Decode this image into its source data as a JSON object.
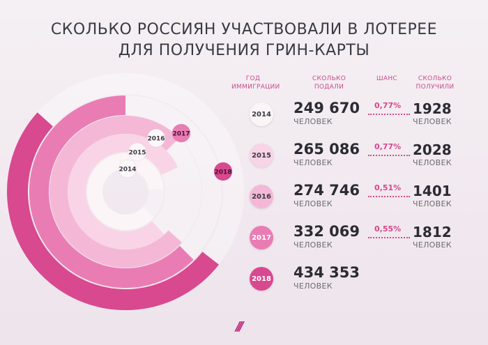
{
  "title_lines": [
    "СКОЛЬКО РОССИЯН УЧАСТВОВАЛИ В ЛОТЕРЕЕ",
    "ДЛЯ ПОЛУЧЕНИЯ ГРИН-КАРТЫ"
  ],
  "headers": {
    "year": [
      "ГОД",
      "ИММИГРАЦИИ"
    ],
    "applied": [
      "СКОЛЬКО",
      "ПОДАЛИ"
    ],
    "chance": [
      "ШАНС"
    ],
    "received": [
      "СКОЛЬКО",
      "ПОЛУЧИЛИ"
    ]
  },
  "colors": {
    "2014": "#fcf5f8",
    "2015": "#f8d4e6",
    "2016": "#f4b8d6",
    "2017": "#ea7cb4",
    "2018": "#d8498f",
    "accent": "#d6478e"
  },
  "logo_text": "///",
  "chart_data": {
    "type": "table",
    "title": "СКОЛЬКО РОССИЯН УЧАСТВОВАЛИ В ЛОТЕРЕЕ ДЛЯ ПОЛУЧЕНИЯ ГРИН-КАРТЫ",
    "rows": [
      {
        "year": "2014",
        "applied": "249 670",
        "applied_value": 249670,
        "unit": "ЧЕЛОВЕК",
        "chance": "0,77%",
        "received": "1928",
        "received_unit": "ЧЕЛОВЕК"
      },
      {
        "year": "2015",
        "applied": "265 086",
        "applied_value": 265086,
        "unit": "ЧЕЛОВЕК",
        "chance": "0,77%",
        "received": "2028",
        "received_unit": "ЧЕЛОВЕК"
      },
      {
        "year": "2016",
        "applied": "274 746",
        "applied_value": 274746,
        "unit": "ЧЕЛОВЕК",
        "chance": "0,51%",
        "received": "1401",
        "received_unit": "ЧЕЛОВЕК"
      },
      {
        "year": "2017",
        "applied": "332 069",
        "applied_value": 332069,
        "unit": "ЧЕЛОВЕК",
        "chance": "0,55%",
        "received": "1812",
        "received_unit": "ЧЕЛОВЕК"
      },
      {
        "year": "2018",
        "applied": "434 353",
        "applied_value": 434353,
        "unit": "ЧЕЛОВЕК",
        "chance": "",
        "received": "",
        "received_unit": ""
      }
    ]
  }
}
